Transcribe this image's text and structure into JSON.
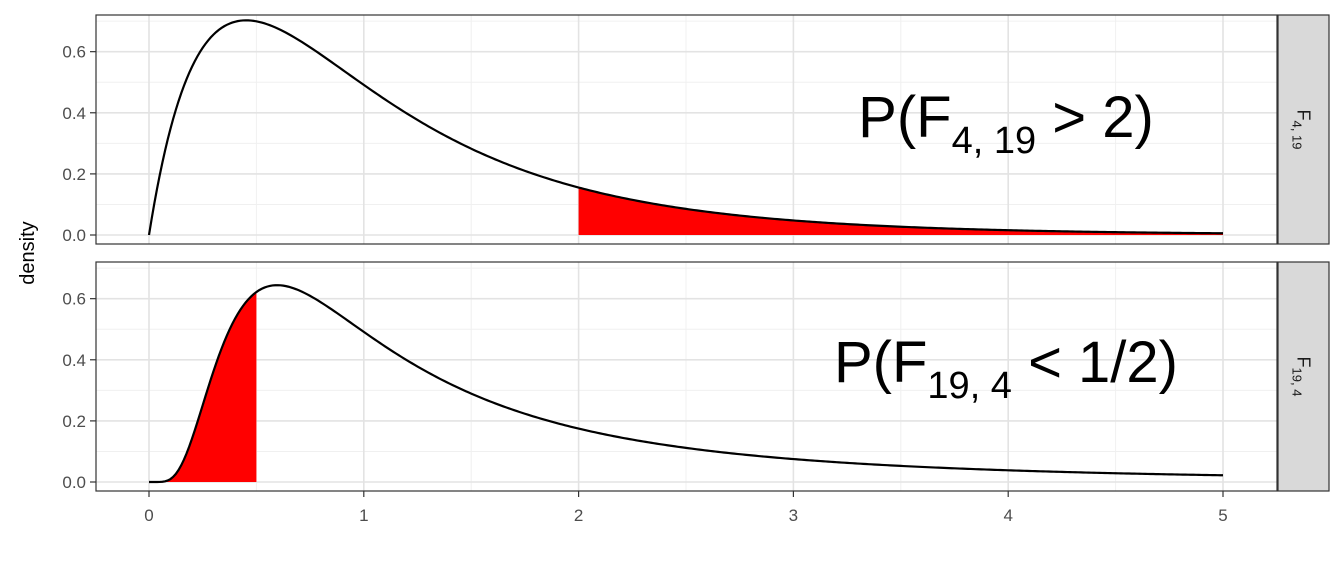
{
  "chart_data": {
    "type": "area",
    "ylabel": "density",
    "xlabel": "",
    "xlim": [
      0,
      5
    ],
    "ylim": [
      0,
      0.72
    ],
    "x_ticks": [
      "0",
      "1",
      "2",
      "3",
      "4",
      "5"
    ],
    "y_ticks": [
      "0.0",
      "0.2",
      "0.4",
      "0.6"
    ],
    "grid": true,
    "colors": {
      "curve": "#000000",
      "fill": "#ff0000",
      "strip": "#d9d9d9"
    },
    "panels": [
      {
        "strip": {
          "base": "F",
          "sub": "4, 19"
        },
        "df1": 4,
        "df2": 19,
        "shade": {
          "from": 2,
          "to": 5
        },
        "annotation": {
          "prefix": "P(F",
          "sub": "4, 19",
          "rest": " > 2)"
        }
      },
      {
        "strip": {
          "base": "F",
          "sub": "19, 4"
        },
        "df1": 19,
        "df2": 4,
        "shade": {
          "from": 0,
          "to": 0.5
        },
        "annotation": {
          "prefix": "P(F",
          "sub": "19, 4",
          "rest": " < 1/2)"
        }
      }
    ]
  }
}
